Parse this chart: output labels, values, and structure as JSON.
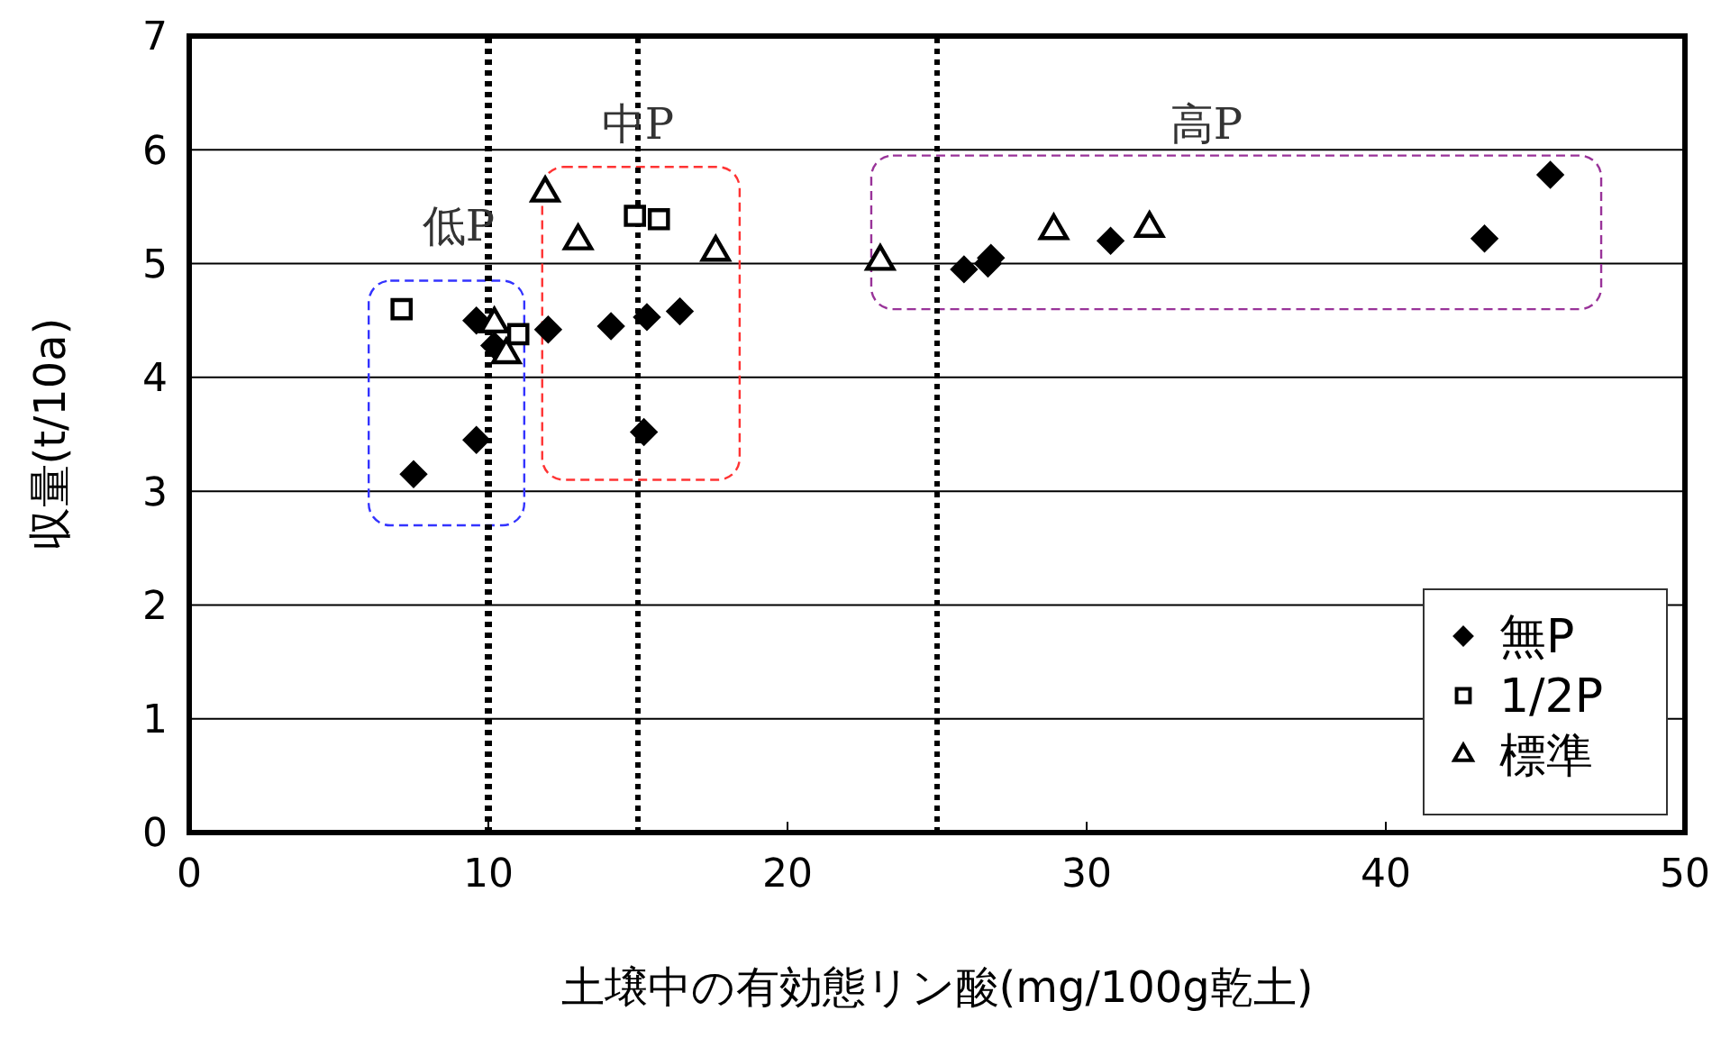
{
  "chart_data": {
    "type": "scatter",
    "xlabel": "土壌中の有効態リン酸(mg/100g乾土)",
    "ylabel": "収量(t/10a)",
    "xlim": [
      0,
      50
    ],
    "xticks": [
      0,
      10,
      20,
      30,
      40,
      50
    ],
    "ylim": [
      0,
      7
    ],
    "yticks": [
      0,
      1,
      2,
      3,
      4,
      5,
      6,
      7
    ],
    "grid": "y",
    "legend": "bottom right",
    "series": [
      {
        "name": "無P",
        "color": "#000000",
        "marker": "diamond",
        "x": [
          7.5,
          9.6,
          9.6,
          10.2,
          12.0,
          14.1,
          15.2,
          15.3,
          16.4,
          25.9,
          26.7,
          26.8,
          30.8,
          43.3,
          45.5
        ],
        "values": [
          3.15,
          4.5,
          3.45,
          4.28,
          4.42,
          4.45,
          3.52,
          4.53,
          4.58,
          4.95,
          5.0,
          5.05,
          5.2,
          5.22,
          5.78
        ]
      },
      {
        "name": "1/2P",
        "color": "#000000",
        "marker": "square",
        "x": [
          7.1,
          11.0,
          14.9,
          15.7
        ],
        "values": [
          4.6,
          4.38,
          5.42,
          5.39
        ]
      },
      {
        "name": "標準",
        "color": "#000000",
        "marker": "triangle",
        "x": [
          10.2,
          10.6,
          11.9,
          13.0,
          17.6,
          23.1,
          28.9,
          32.1
        ],
        "values": [
          4.47,
          4.2,
          5.62,
          5.2,
          5.1,
          5.02,
          5.29,
          5.31
        ]
      }
    ],
    "ref_lines": [
      {
        "axis": "x",
        "value": 10,
        "line_style": "dotted",
        "color": "#000000"
      },
      {
        "axis": "x",
        "value": 15,
        "line_style": "dotted",
        "color": "#000000"
      },
      {
        "axis": "x",
        "value": 25,
        "line_style": "dotted",
        "color": "#000000"
      }
    ],
    "annotations": [
      "低P",
      "中P",
      "高P"
    ]
  }
}
